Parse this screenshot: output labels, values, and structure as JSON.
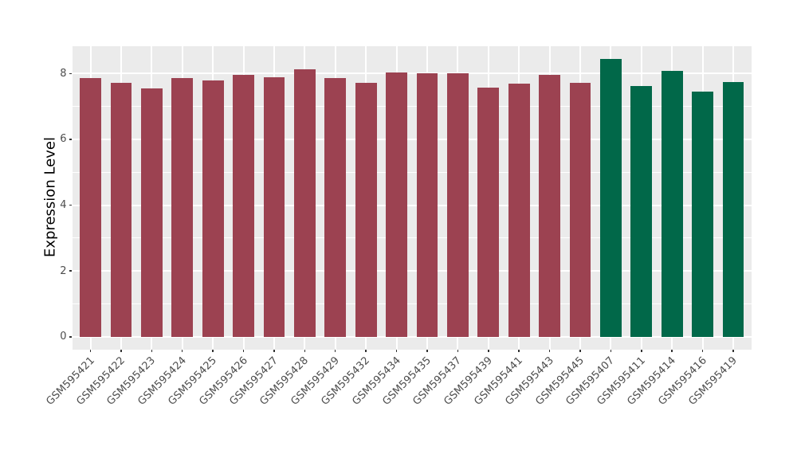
{
  "figure": {
    "background": "#FFFFFF",
    "panel_background": "#EBEBEB",
    "grid_color": "#FFFFFF",
    "tick_mark_color": "#333333",
    "axis_text_color": "#4D4D4D",
    "axis_title_color": "#000000"
  },
  "chart_data": {
    "type": "bar",
    "title": "",
    "xlabel": "",
    "ylabel": "Expression Level",
    "ylim": [
      -0.38,
      8.83
    ],
    "yticks": [
      0,
      2,
      4,
      6,
      8
    ],
    "minor_yticks": [
      1,
      3,
      5,
      7
    ],
    "grid": "on",
    "legend": "none",
    "group_colors": {
      "groupA": "#9C4251",
      "groupB": "#016849"
    },
    "categories": [
      "GSM595421",
      "GSM595422",
      "GSM595423",
      "GSM595424",
      "GSM595425",
      "GSM595426",
      "GSM595427",
      "GSM595428",
      "GSM595429",
      "GSM595432",
      "GSM595434",
      "GSM595435",
      "GSM595437",
      "GSM595439",
      "GSM595441",
      "GSM595443",
      "GSM595445",
      "GSM595407",
      "GSM595411",
      "GSM595414",
      "GSM595416",
      "GSM595419"
    ],
    "values": [
      7.86,
      7.72,
      7.55,
      7.86,
      7.8,
      7.97,
      7.89,
      8.12,
      7.87,
      7.71,
      8.03,
      8.01,
      8.01,
      7.57,
      7.7,
      7.95,
      7.72,
      8.45,
      7.63,
      8.07,
      7.46,
      7.75
    ],
    "groups": [
      "groupA",
      "groupA",
      "groupA",
      "groupA",
      "groupA",
      "groupA",
      "groupA",
      "groupA",
      "groupA",
      "groupA",
      "groupA",
      "groupA",
      "groupA",
      "groupA",
      "groupA",
      "groupA",
      "groupA",
      "groupB",
      "groupB",
      "groupB",
      "groupB",
      "groupB"
    ]
  }
}
